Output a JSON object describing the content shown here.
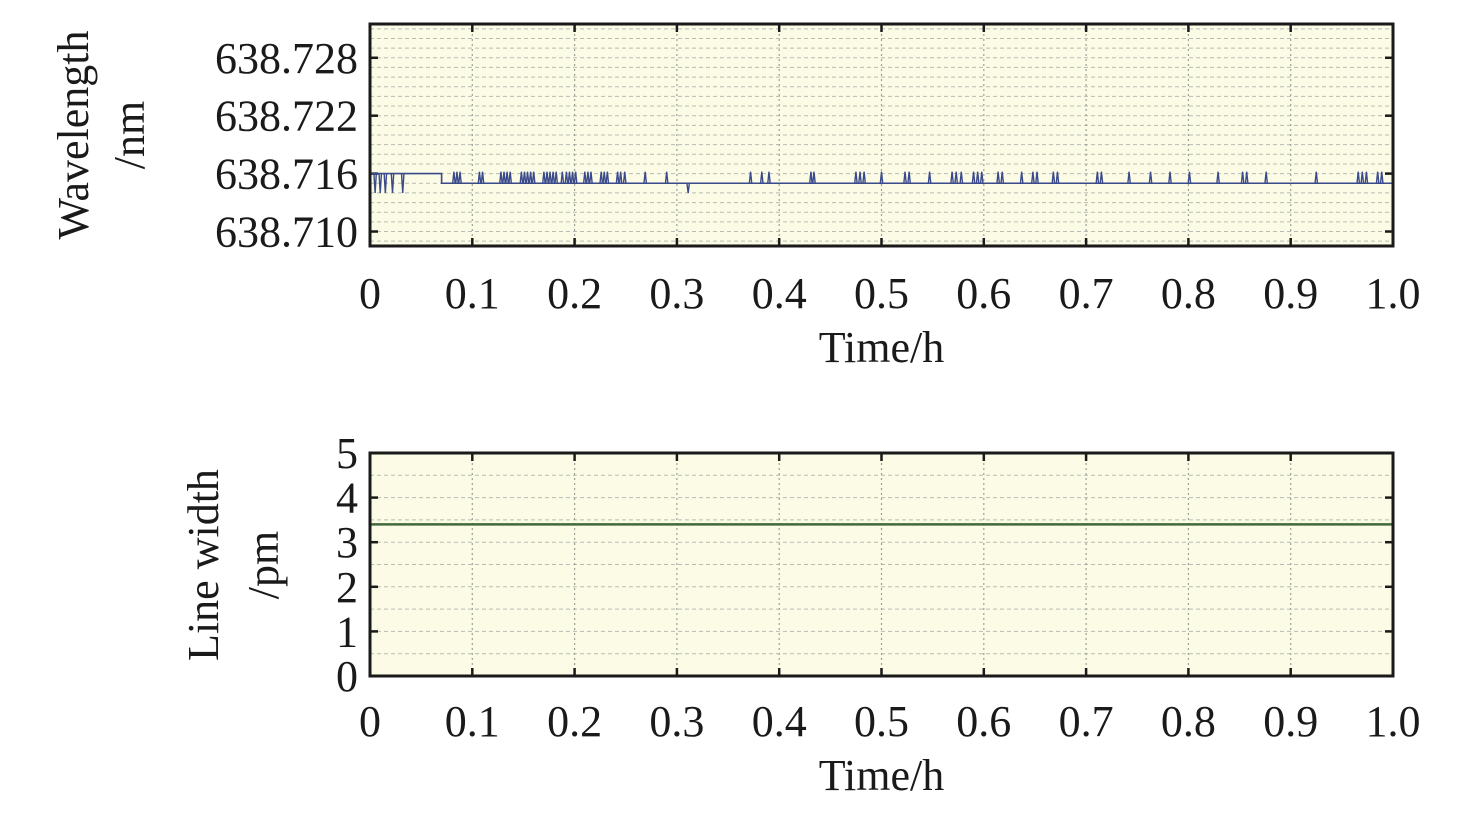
{
  "chart_data": [
    {
      "type": "line",
      "xlabel": "Time/h",
      "ylabel_lines": [
        "Wavelength",
        "/nm"
      ],
      "xlim": [
        0,
        1.0
      ],
      "ylim": [
        638.7085,
        638.7315
      ],
      "xticks": [
        0,
        0.1,
        0.2,
        0.3,
        0.4,
        0.5,
        0.6,
        0.7,
        0.8,
        0.9,
        1.0
      ],
      "xtick_labels": [
        "0",
        "0.1",
        "0.2",
        "0.3",
        "0.4",
        "0.5",
        "0.6",
        "0.7",
        "0.8",
        "0.9",
        "1.0"
      ],
      "yticks": [
        638.71,
        638.716,
        638.722,
        638.728
      ],
      "ytick_labels": [
        "638.710",
        "638.716",
        "638.722",
        "638.728"
      ],
      "y_minor_step": 0.001,
      "grid": true,
      "colors": {
        "line": "#3a4a8a",
        "background": "#fbfbe6"
      },
      "series": [
        {
          "baseline": 638.715,
          "segments": [
            {
              "x0": 0.0,
              "x1": 0.07,
              "y": 638.716
            },
            {
              "x0": 0.07,
              "x1": 1.0,
              "y": 638.715
            }
          ],
          "spikes_up": [
            0.082,
            0.085,
            0.088,
            0.107,
            0.11,
            0.128,
            0.131,
            0.134,
            0.137,
            0.148,
            0.151,
            0.154,
            0.157,
            0.16,
            0.17,
            0.173,
            0.176,
            0.179,
            0.182,
            0.188,
            0.192,
            0.195,
            0.198,
            0.201,
            0.21,
            0.213,
            0.216,
            0.226,
            0.229,
            0.232,
            0.242,
            0.245,
            0.249,
            0.269,
            0.29,
            0.372,
            0.383,
            0.39,
            0.431,
            0.434,
            0.475,
            0.479,
            0.483,
            0.5,
            0.523,
            0.527,
            0.547,
            0.569,
            0.573,
            0.578,
            0.59,
            0.594,
            0.598,
            0.614,
            0.618,
            0.637,
            0.648,
            0.652,
            0.668,
            0.672,
            0.711,
            0.715,
            0.742,
            0.763,
            0.782,
            0.801,
            0.829,
            0.853,
            0.857,
            0.876,
            0.925,
            0.966,
            0.97,
            0.974,
            0.985,
            0.989
          ],
          "spikes_down": [
            0.005,
            0.01,
            0.015,
            0.022,
            0.032,
            0.311
          ],
          "spike_up_value": 638.7162,
          "spike_down_value": 638.714
        }
      ]
    },
    {
      "type": "line",
      "xlabel": "Time/h",
      "ylabel_lines": [
        "Line width",
        "/pm"
      ],
      "xlim": [
        0,
        1.0
      ],
      "ylim": [
        0,
        5
      ],
      "xticks": [
        0,
        0.1,
        0.2,
        0.3,
        0.4,
        0.5,
        0.6,
        0.7,
        0.8,
        0.9,
        1.0
      ],
      "xtick_labels": [
        "0",
        "0.1",
        "0.2",
        "0.3",
        "0.4",
        "0.5",
        "0.6",
        "0.7",
        "0.8",
        "0.9",
        "1.0"
      ],
      "yticks": [
        0,
        1,
        2,
        3,
        4,
        5
      ],
      "ytick_labels": [
        "0",
        "1",
        "2",
        "3",
        "4",
        "5"
      ],
      "y_minor_step": 0.5,
      "grid": true,
      "colors": {
        "line": "#3f6a3a",
        "background": "#fbfbe6"
      },
      "series": [
        {
          "x": [
            0,
            1.0
          ],
          "y": [
            3.4,
            3.4
          ]
        }
      ]
    }
  ]
}
